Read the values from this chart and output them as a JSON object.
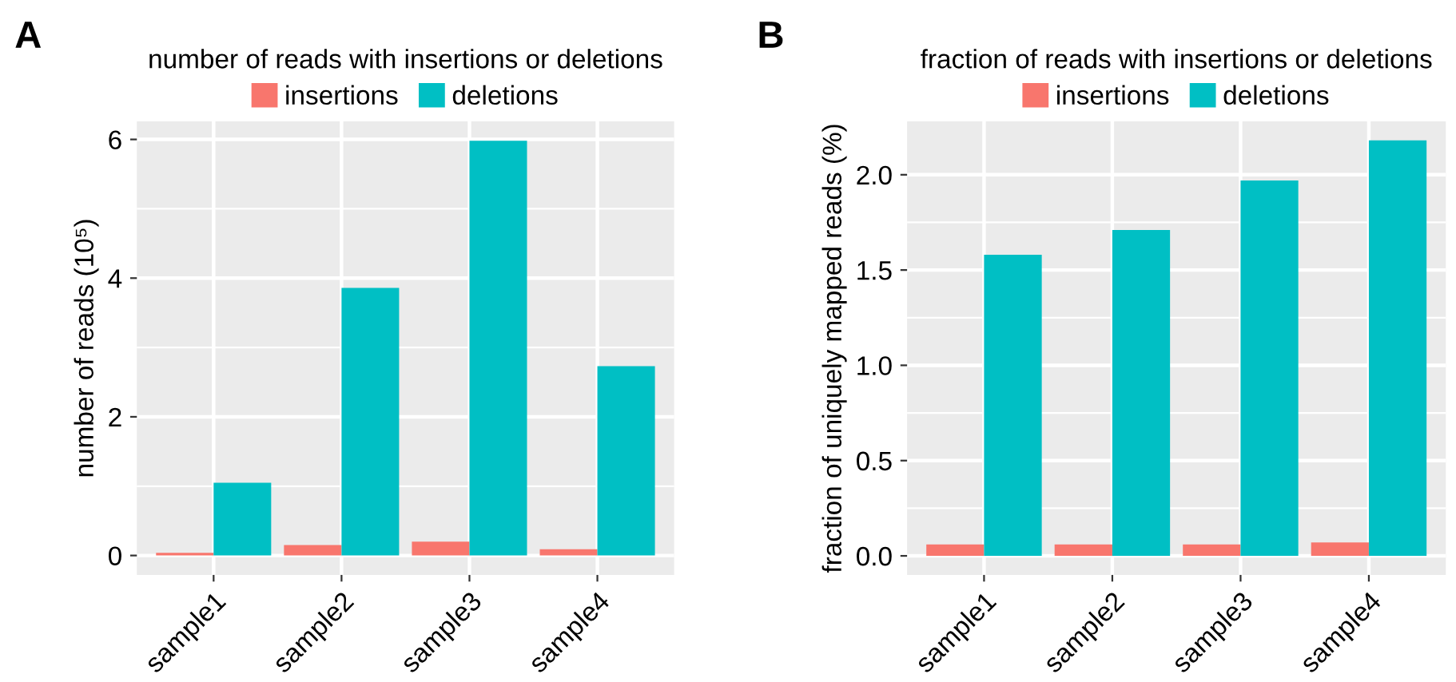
{
  "chart_data": [
    {
      "type": "bar",
      "title": "number of reads with insertions or deletions",
      "ylabel": "number of reads (10⁵)",
      "categories": [
        "sample1",
        "sample2",
        "sample3",
        "sample4"
      ],
      "series": [
        {
          "name": "insertions",
          "color": "#f8766d",
          "values": [
            0.04,
            0.15,
            0.2,
            0.09
          ]
        },
        {
          "name": "deletions",
          "color": "#00bfc4",
          "values": [
            1.05,
            3.86,
            5.98,
            2.73
          ]
        }
      ],
      "ylim": [
        -0.28,
        6.26
      ],
      "yticks": [
        0,
        2,
        4,
        6
      ],
      "grid": true,
      "legend": "top",
      "annotations": [
        "A"
      ]
    },
    {
      "type": "bar",
      "title": "fraction of reads with insertions or deletions",
      "ylabel": "fraction of uniquely mapped reads (%)",
      "categories": [
        "sample1",
        "sample2",
        "sample3",
        "sample4"
      ],
      "series": [
        {
          "name": "insertions",
          "color": "#f8766d",
          "values": [
            0.06,
            0.06,
            0.06,
            0.07
          ]
        },
        {
          "name": "deletions",
          "color": "#00bfc4",
          "values": [
            1.58,
            1.71,
            1.97,
            2.18
          ]
        }
      ],
      "ylim": [
        -0.1,
        2.28
      ],
      "yticks": [
        {
          "value": 0,
          "label": "0.0"
        },
        {
          "value": 0.5,
          "label": "0.5"
        },
        {
          "value": 1,
          "label": "1.0"
        },
        {
          "value": 1.5,
          "label": "1.5"
        },
        {
          "value": 2,
          "label": "2.0"
        }
      ],
      "grid": true,
      "legend": "top",
      "annotations": [
        "B"
      ]
    }
  ]
}
